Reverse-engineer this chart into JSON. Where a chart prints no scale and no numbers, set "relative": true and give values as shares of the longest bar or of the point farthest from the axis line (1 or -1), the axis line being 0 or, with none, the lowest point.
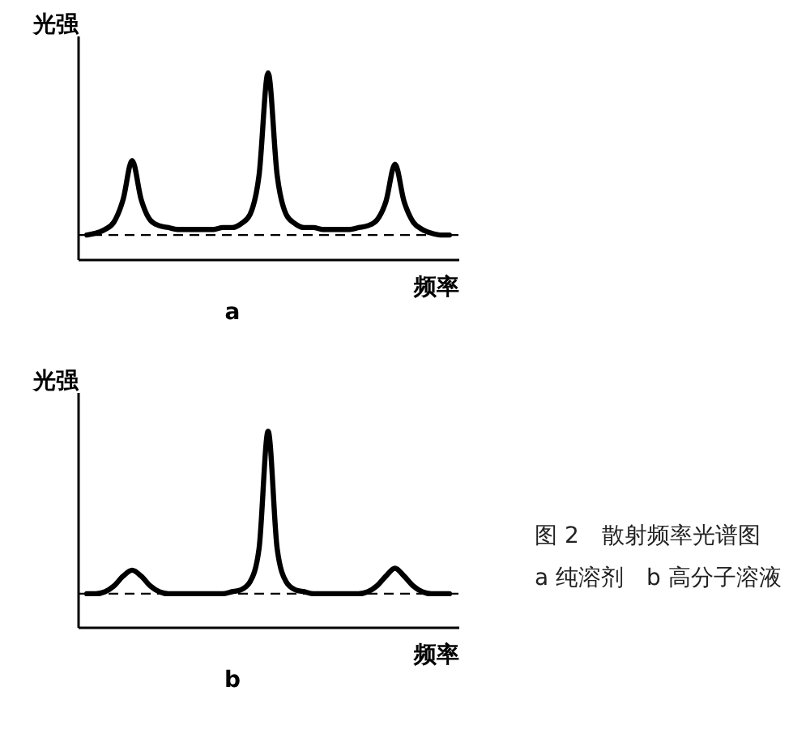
{
  "chart_data": [
    {
      "type": "line",
      "relative": true,
      "title": "a",
      "xlabel": "频率",
      "ylabel": "光强",
      "tick_labels": false,
      "categories": [
        null,
        null,
        null,
        null,
        null,
        null,
        null,
        null,
        null,
        null,
        null,
        null,
        null,
        null,
        null,
        null,
        null,
        null,
        null,
        null,
        null,
        null,
        null,
        null,
        null,
        null,
        null,
        null,
        null,
        null,
        null,
        null,
        null,
        null,
        null,
        null,
        null,
        null,
        null,
        null,
        null
      ],
      "series": [
        {
          "color": "#000000",
          "values": [
            0.13,
            0.14,
            0.16,
            0.2,
            0.32,
            0.53,
            0.32,
            0.21,
            0.18,
            0.17,
            0.16,
            0.16,
            0.16,
            0.16,
            0.16,
            0.17,
            0.17,
            0.19,
            0.24,
            0.45,
            1,
            0.45,
            0.24,
            0.19,
            0.17,
            0.17,
            0.16,
            0.16,
            0.16,
            0.16,
            0.17,
            0.18,
            0.21,
            0.31,
            0.51,
            0.31,
            0.2,
            0.16,
            0.14,
            0.13,
            0.13
          ]
        }
      ],
      "ref_lines": [
        {
          "axis": "y",
          "value": 0.13,
          "line_style": "dashed"
        }
      ]
    },
    {
      "type": "line",
      "relative": true,
      "title": "b",
      "xlabel": "频率",
      "ylabel": "光强",
      "tick_labels": false,
      "categories": [
        null,
        null,
        null,
        null,
        null,
        null,
        null,
        null,
        null,
        null,
        null,
        null,
        null,
        null,
        null,
        null,
        null,
        null,
        null,
        null,
        null,
        null,
        null,
        null,
        null,
        null,
        null,
        null,
        null,
        null,
        null,
        null,
        null,
        null,
        null,
        null,
        null,
        null,
        null,
        null,
        null
      ],
      "series": [
        {
          "color": "#000000",
          "values": [
            0.17,
            0.17,
            0.18,
            0.21,
            0.26,
            0.29,
            0.26,
            0.21,
            0.18,
            0.17,
            0.17,
            0.17,
            0.17,
            0.17,
            0.17,
            0.17,
            0.18,
            0.19,
            0.23,
            0.4,
            1,
            0.4,
            0.23,
            0.19,
            0.18,
            0.17,
            0.17,
            0.17,
            0.17,
            0.17,
            0.17,
            0.18,
            0.21,
            0.26,
            0.3,
            0.26,
            0.21,
            0.18,
            0.17,
            0.17,
            0.17
          ]
        }
      ],
      "ref_lines": [
        {
          "axis": "y",
          "value": 0.17,
          "line_style": "dashed"
        }
      ],
      "annotations": [
        "图 2　散射频率光谱图",
        "a 纯溶剂　b 高分子溶液"
      ]
    }
  ]
}
